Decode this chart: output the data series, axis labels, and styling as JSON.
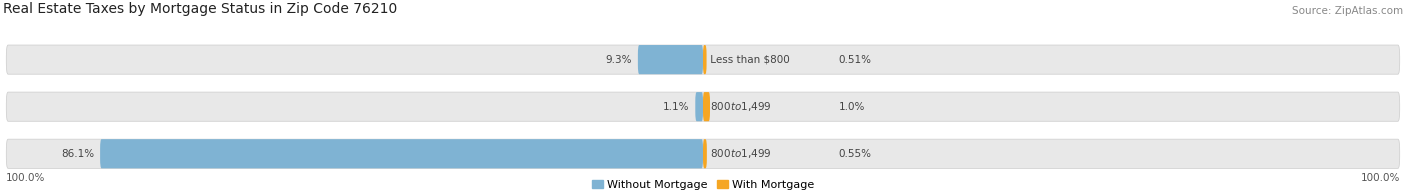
{
  "title": "Real Estate Taxes by Mortgage Status in Zip Code 76210",
  "source": "Source: ZipAtlas.com",
  "rows": [
    {
      "label": "Less than $800",
      "without_mortgage": 9.3,
      "with_mortgage": 0.51,
      "wm_label": "9.3%",
      "wtm_label": "0.51%"
    },
    {
      "label": "$800 to $1,499",
      "without_mortgage": 1.1,
      "with_mortgage": 1.0,
      "wm_label": "1.1%",
      "wtm_label": "1.0%"
    },
    {
      "label": "$800 to $1,499",
      "without_mortgage": 86.1,
      "with_mortgage": 0.55,
      "wm_label": "86.1%",
      "wtm_label": "0.55%"
    }
  ],
  "without_mortgage_color": "#7fb3d3",
  "with_mortgage_color": "#f5a623",
  "bar_bg_color": "#e8e8e8",
  "bar_border_color": "#d0d0d0",
  "bar_height": 0.62,
  "max_val": 100.0,
  "left_label": "100.0%",
  "right_label": "100.0%",
  "legend_without": "Without Mortgage",
  "legend_with": "With Mortgage",
  "title_fontsize": 10,
  "source_fontsize": 7.5,
  "label_fontsize": 7.5,
  "pct_fontsize": 7.5,
  "tick_fontsize": 7.5,
  "legend_fontsize": 8
}
